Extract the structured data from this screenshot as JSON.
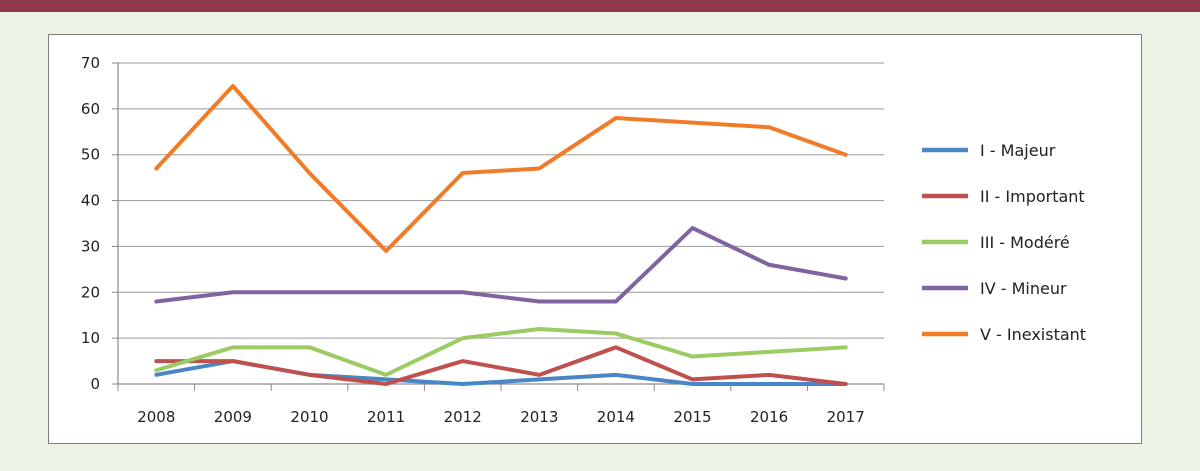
{
  "chart_data": {
    "type": "line",
    "title": "",
    "xlabel": "",
    "ylabel": "",
    "ylim": [
      0,
      70
    ],
    "yticks": [
      0,
      10,
      20,
      30,
      40,
      50,
      60,
      70
    ],
    "grid": true,
    "legend_position": "right",
    "categories": [
      "2008",
      "2009",
      "2010",
      "2011",
      "2012",
      "2013",
      "2014",
      "2015",
      "2016",
      "2017"
    ],
    "series": [
      {
        "name": "I - Majeur",
        "color": "#4a86c5",
        "values": [
          2,
          5,
          2,
          1,
          0,
          1,
          2,
          0,
          0,
          0
        ]
      },
      {
        "name": "II - Important",
        "color": "#c0504d",
        "values": [
          5,
          5,
          2,
          0,
          5,
          2,
          8,
          1,
          2,
          0
        ]
      },
      {
        "name": "III - Modéré",
        "color": "#9bcb62",
        "values": [
          3,
          8,
          8,
          2,
          10,
          12,
          11,
          6,
          7,
          8
        ]
      },
      {
        "name": "IV - Mineur",
        "color": "#8064a2",
        "values": [
          18,
          20,
          20,
          20,
          20,
          18,
          18,
          34,
          26,
          23
        ]
      },
      {
        "name": "V - Inexistant",
        "color": "#f07c28",
        "values": [
          47,
          65,
          46,
          29,
          46,
          47,
          58,
          57,
          56,
          50
        ]
      }
    ]
  },
  "colors": {
    "top_bar": "#8e3a4a",
    "background": "#ecf3e4",
    "gridline": "#9a9a9a"
  }
}
